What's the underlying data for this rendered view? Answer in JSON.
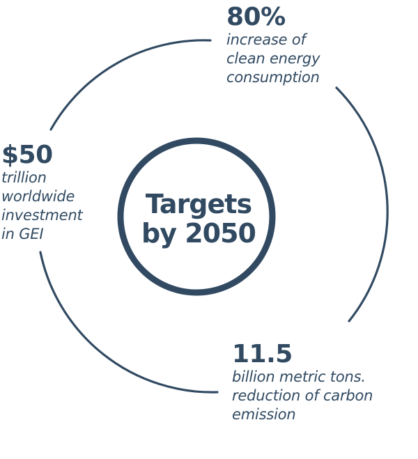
{
  "center": {
    "title_line1": "Targets",
    "title_line2": "by 2050"
  },
  "stats": {
    "top": {
      "value": "80%",
      "description": "increase of\nclean energy\nconsumption"
    },
    "left": {
      "value": "$50",
      "description": "trillion\nworldwide\ninvestment\nin GEI"
    },
    "bottom": {
      "value": "11.5",
      "description": "billion metric tons.\nreduction of carbon\nemission"
    }
  },
  "colors": {
    "primary": "#314a62",
    "background": "#ffffff"
  }
}
